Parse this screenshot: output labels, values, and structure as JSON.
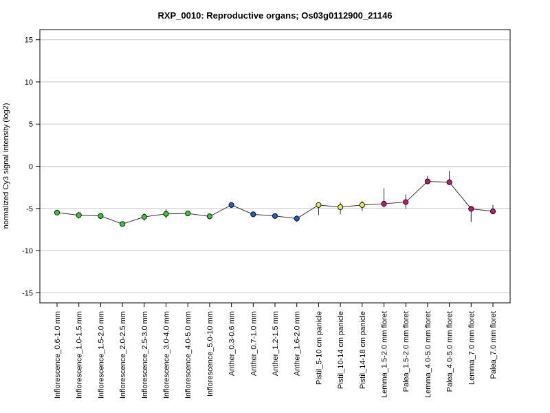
{
  "chart_data": {
    "type": "line",
    "title": "RXP_0010: Reproductive organs; Os03g0112900_21146",
    "xlabel": "",
    "ylabel": "normalized Cy3 signal intensity (log2)",
    "ylim": [
      -16.2,
      16.2
    ],
    "yticks": [
      15,
      10,
      5,
      0,
      -5,
      -10,
      -15
    ],
    "grid": true,
    "categories": [
      "Inflorescence_0.6-1.0 mm",
      "Inflorescence_1.0-1.5 mm",
      "Inflorescence_1.5-2.0 mm",
      "Inflorescence_2.0-2.5 mm",
      "Inflorescence_2.5-3.0 mm",
      "Inflorescence_3.0-4.0 mm",
      "Inflorescence_4.0-5.0 mm",
      "Inflorescence_5.0-10 mm",
      "Anther_0.3-0.6 mm",
      "Anther_0.7-1.0 mm",
      "Anther_1.2-1.5 mm",
      "Anther_1.6-2.0 mm",
      "Pistil_5-10 cm panicle",
      "Pistil_10-14 cm panicle",
      "Pistil_14-18 cm panicle",
      "Lemma_1.5-2.0 mm floret",
      "Palea_1.5-2.0 mm floret",
      "Lemma_4.0-5.0 mm floret",
      "Palea_4.0-5.0 mm floret",
      "Lemma_7.0 mm floret",
      "Palea_7.0 mm floret"
    ],
    "values": [
      -5.5,
      -5.8,
      -5.9,
      -6.85,
      -6.0,
      -5.65,
      -5.6,
      -5.95,
      -4.6,
      -5.7,
      -5.9,
      -6.2,
      -4.6,
      -4.85,
      -4.6,
      -4.45,
      -4.25,
      -1.8,
      -1.9,
      -5.05,
      -5.35
    ],
    "err_low": [
      -5.65,
      -6.2,
      -6.25,
      -7.0,
      -6.45,
      -6.2,
      -5.7,
      -6.25,
      -4.7,
      -5.8,
      -6.1,
      -6.6,
      -5.8,
      -5.7,
      -5.3,
      -4.9,
      -5.05,
      -2.1,
      -1.95,
      -6.6,
      -5.7
    ],
    "err_high": [
      -5.35,
      -5.4,
      -5.6,
      -6.7,
      -5.6,
      -5.1,
      -5.5,
      -5.65,
      -4.45,
      -5.6,
      -5.7,
      -5.85,
      -4.35,
      -4.3,
      -4.1,
      -2.6,
      -3.35,
      -1.15,
      -0.55,
      -4.85,
      -4.6
    ],
    "colors": [
      "#33cc33",
      "#33cc33",
      "#33cc33",
      "#33cc33",
      "#33cc33",
      "#33cc33",
      "#33cc33",
      "#33cc33",
      "#1f5fbf",
      "#1f5fbf",
      "#1f5fbf",
      "#1f5fbf",
      "#eeee44",
      "#eeee44",
      "#eeee44",
      "#cc1177",
      "#cc1177",
      "#cc1177",
      "#cc1177",
      "#cc1177",
      "#cc1177"
    ]
  }
}
